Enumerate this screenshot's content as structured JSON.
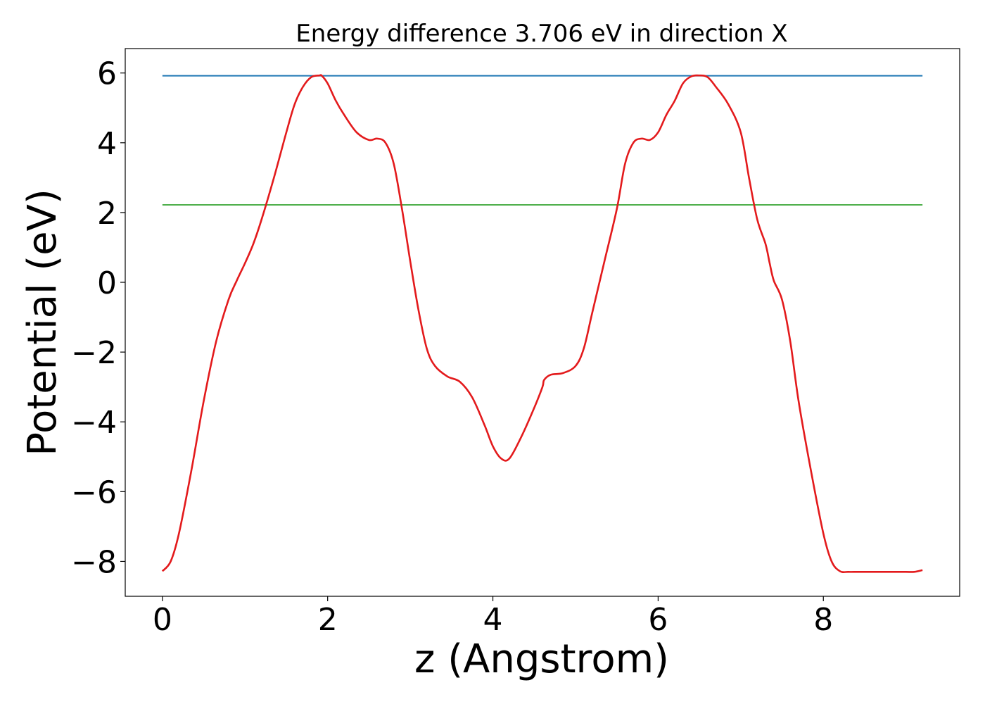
{
  "chart_data": {
    "type": "line",
    "title": "Energy difference 3.706 eV in direction X",
    "xlabel": "z (Angstrom)",
    "ylabel": "Potential (eV)",
    "xlim": [
      -0.45,
      9.65
    ],
    "ylim": [
      -9.0,
      6.7
    ],
    "xticks": [
      0,
      2,
      4,
      6,
      8
    ],
    "yticks": [
      -8,
      -6,
      -4,
      -2,
      0,
      2,
      4,
      6
    ],
    "xtick_labels": [
      "0",
      "2",
      "4",
      "6",
      "8"
    ],
    "ytick_labels": [
      "−8",
      "−6",
      "−4",
      "−2",
      "0",
      "2",
      "4",
      "6"
    ],
    "grid": false,
    "legend": "none",
    "colors": {
      "potential": "#e31a1c",
      "max_line": "#1f77b4",
      "mean_line": "#4daf4a"
    },
    "series": [
      {
        "x": [
          0.0,
          0.1,
          0.2,
          0.35,
          0.5,
          0.65,
          0.8,
          0.9,
          1.0,
          1.1,
          1.2,
          1.35,
          1.5,
          1.6,
          1.7,
          1.8,
          1.9,
          1.93,
          2.0,
          2.1,
          2.2,
          2.35,
          2.5,
          2.6,
          2.7,
          2.8,
          2.9,
          3.0,
          3.1,
          3.2,
          3.3,
          3.45,
          3.6,
          3.75,
          3.9,
          4.0,
          4.1,
          4.2,
          4.35,
          4.5,
          4.6,
          4.62,
          4.7,
          4.85,
          5.0,
          5.1,
          5.2,
          5.35,
          5.5,
          5.6,
          5.7,
          5.8,
          5.9,
          6.0,
          6.1,
          6.2,
          6.3,
          6.4,
          6.5,
          6.6,
          6.7,
          6.85,
          7.0,
          7.1,
          7.2,
          7.3,
          7.35,
          7.4,
          7.5,
          7.6,
          7.7,
          7.85,
          8.0,
          8.1,
          8.2,
          8.3,
          8.4,
          8.5,
          8.6,
          8.7,
          8.85,
          9.0,
          9.1,
          9.2
        ],
        "y": [
          -8.28,
          -8.0,
          -7.2,
          -5.4,
          -3.4,
          -1.7,
          -0.5,
          0.05,
          0.55,
          1.1,
          1.8,
          3.0,
          4.3,
          5.1,
          5.6,
          5.88,
          5.93,
          5.92,
          5.7,
          5.2,
          4.8,
          4.3,
          4.08,
          4.12,
          4.0,
          3.4,
          2.1,
          0.6,
          -0.8,
          -1.9,
          -2.4,
          -2.7,
          -2.85,
          -3.3,
          -4.1,
          -4.7,
          -5.05,
          -5.05,
          -4.4,
          -3.6,
          -3.0,
          -2.8,
          -2.65,
          -2.6,
          -2.4,
          -1.9,
          -0.9,
          0.6,
          2.1,
          3.4,
          4.0,
          4.12,
          4.08,
          4.3,
          4.8,
          5.2,
          5.7,
          5.9,
          5.93,
          5.88,
          5.6,
          5.1,
          4.3,
          3.0,
          1.8,
          1.1,
          0.55,
          0.05,
          -0.5,
          -1.7,
          -3.4,
          -5.4,
          -7.2,
          -8.0,
          -8.28,
          -8.3,
          -8.3,
          -8.3,
          -8.3,
          -8.3,
          -8.3,
          -8.3,
          -8.3,
          -8.25
        ],
        "x_note": ""
      }
    ],
    "hlines": [
      {
        "y": 5.92,
        "xmin": 0.0,
        "xmax": 9.2
      },
      {
        "y": 2.22,
        "xmin": 0.0,
        "xmax": 9.2
      }
    ]
  }
}
